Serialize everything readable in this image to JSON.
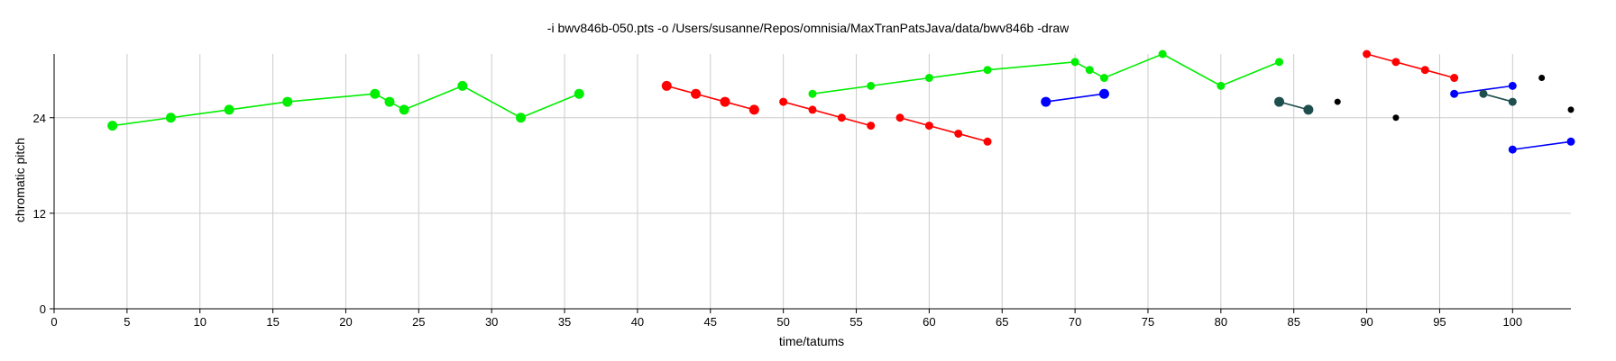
{
  "chart_data": {
    "type": "line",
    "title": "-i bwv846b-050.pts -o /Users/susanne/Repos/omnisia/MaxTranPatsJava/data/bwv846b -draw",
    "xlabel": "time/tatums",
    "ylabel": "chromatic pitch",
    "xlim": [
      0,
      104
    ],
    "ylim": [
      0,
      32
    ],
    "xticks": [
      0,
      5,
      10,
      15,
      20,
      25,
      30,
      35,
      40,
      45,
      50,
      55,
      60,
      65,
      70,
      75,
      80,
      85,
      90,
      95,
      100
    ],
    "yticks": [
      0,
      12,
      24
    ],
    "grid": true,
    "series": [
      {
        "color": "#00ee00",
        "marker": "large",
        "points": [
          [
            4,
            23
          ],
          [
            8,
            24
          ],
          [
            12,
            25
          ],
          [
            16,
            26
          ],
          [
            22,
            27
          ],
          [
            23,
            26
          ],
          [
            24,
            25
          ],
          [
            28,
            28
          ],
          [
            32,
            24
          ],
          [
            36,
            27
          ]
        ]
      },
      {
        "color": "#ff0000",
        "marker": "large",
        "points": [
          [
            42,
            28
          ],
          [
            44,
            27
          ],
          [
            46,
            26
          ],
          [
            48,
            25
          ]
        ]
      },
      {
        "color": "#ff0000",
        "marker": "small",
        "points": [
          [
            50,
            26
          ],
          [
            52,
            25
          ],
          [
            54,
            24
          ],
          [
            56,
            23
          ]
        ]
      },
      {
        "color": "#ff0000",
        "marker": "small",
        "points": [
          [
            58,
            24
          ],
          [
            60,
            23
          ],
          [
            62,
            22
          ],
          [
            64,
            21
          ]
        ]
      },
      {
        "color": "#00ee00",
        "marker": "small",
        "points": [
          [
            52,
            27
          ],
          [
            56,
            28
          ],
          [
            60,
            29
          ],
          [
            64,
            30
          ],
          [
            70,
            31
          ],
          [
            71,
            30
          ],
          [
            72,
            29
          ],
          [
            76,
            32
          ],
          [
            80,
            28
          ],
          [
            84,
            31
          ]
        ]
      },
      {
        "color": "#0000ff",
        "marker": "large",
        "points": [
          [
            68,
            26
          ],
          [
            72,
            27
          ]
        ]
      },
      {
        "color": "#1f4e4e",
        "marker": "large",
        "points": [
          [
            84,
            26
          ],
          [
            86,
            25
          ]
        ]
      },
      {
        "color": "#ff0000",
        "marker": "small",
        "points": [
          [
            90,
            32
          ],
          [
            92,
            31
          ],
          [
            94,
            30
          ],
          [
            96,
            29
          ]
        ]
      },
      {
        "color": "#0000ff",
        "marker": "small",
        "points": [
          [
            96,
            27
          ],
          [
            100,
            28
          ]
        ]
      },
      {
        "color": "#1f4e4e",
        "marker": "small",
        "points": [
          [
            98,
            27
          ],
          [
            100,
            26
          ]
        ]
      },
      {
        "color": "#0000ff",
        "marker": "small",
        "points": [
          [
            100,
            20
          ],
          [
            104,
            21
          ]
        ]
      },
      {
        "color": "#000000",
        "marker": "dot",
        "scatter": true,
        "points": [
          [
            88,
            26
          ],
          [
            92,
            24
          ],
          [
            102,
            29
          ],
          [
            104,
            25
          ]
        ]
      }
    ]
  }
}
